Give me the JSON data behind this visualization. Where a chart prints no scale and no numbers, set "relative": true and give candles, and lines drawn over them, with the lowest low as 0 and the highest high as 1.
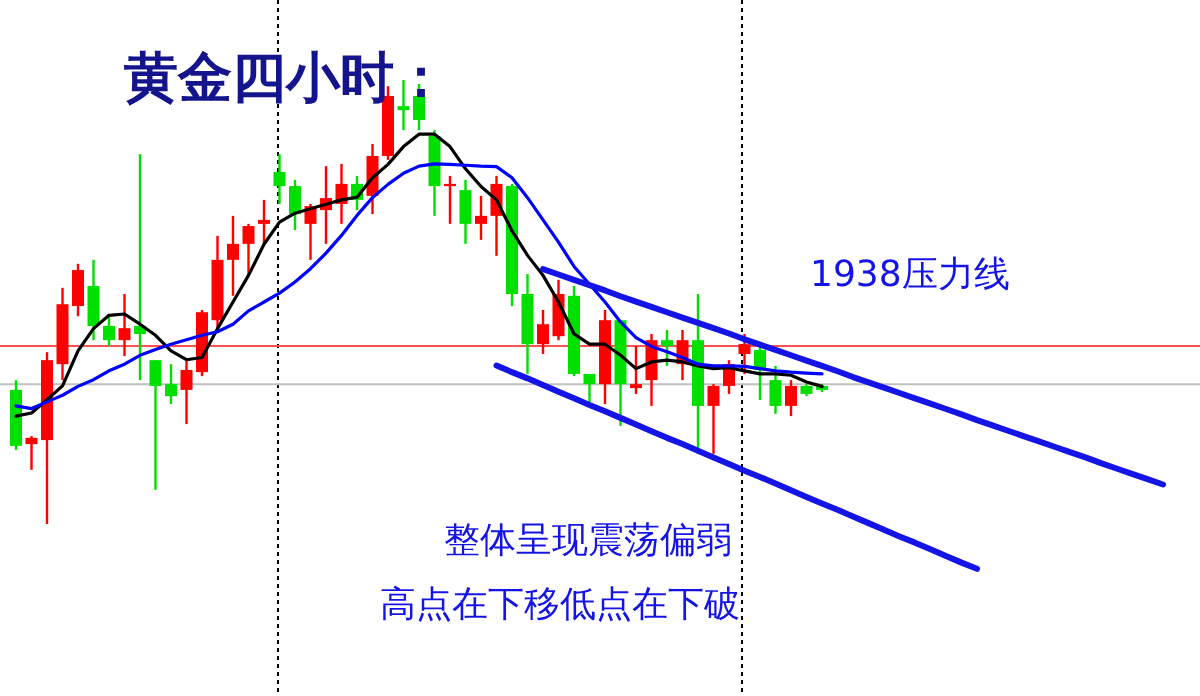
{
  "chart_data": {
    "type": "candlestick",
    "title": "黄金四小时：",
    "relative": true,
    "categories": [
      null,
      null,
      null,
      null,
      null,
      null,
      null,
      null,
      null,
      null,
      null,
      null,
      null,
      null,
      null,
      null,
      null,
      null,
      null,
      null,
      null,
      null,
      null,
      null,
      null,
      null,
      null,
      null,
      null,
      null,
      null,
      null,
      null,
      null,
      null,
      null,
      null,
      null,
      null,
      null,
      null,
      null,
      null,
      null,
      null,
      null,
      null,
      null,
      null,
      null,
      null,
      null,
      null,
      null,
      null,
      null,
      null,
      null,
      null,
      null,
      null,
      null,
      null,
      null,
      null,
      null,
      null,
      null,
      null,
      null,
      null,
      null,
      null,
      null,
      null
    ],
    "ohlc": [
      [
        0.302,
        0.324,
        0.167,
        0.176
      ],
      [
        0.18,
        0.198,
        0.122,
        0.194
      ],
      [
        0.189,
        0.387,
        0,
        0.369
      ],
      [
        0.36,
        0.532,
        0.324,
        0.495
      ],
      [
        0.491,
        0.586,
        0.468,
        0.572
      ],
      [
        0.536,
        0.595,
        0.414,
        0.446
      ],
      [
        0.446,
        0.473,
        0.401,
        0.414
      ],
      [
        0.414,
        0.518,
        0.378,
        0.441
      ],
      [
        0.446,
        0.833,
        0.324,
        0.428
      ],
      [
        0.369,
        0.369,
        0.077,
        0.311
      ],
      [
        0.315,
        0.36,
        0.27,
        0.288
      ],
      [
        0.302,
        0.369,
        0.225,
        0.347
      ],
      [
        0.342,
        0.482,
        0.333,
        0.477
      ],
      [
        0.459,
        0.649,
        0.437,
        0.595
      ],
      [
        0.595,
        0.694,
        0.514,
        0.631
      ],
      [
        0.631,
        0.676,
        0.563,
        0.671
      ],
      [
        0.676,
        0.73,
        0.631,
        0.685
      ],
      [
        0.793,
        0.833,
        0.721,
        0.761
      ],
      [
        0.761,
        0.775,
        0.662,
        0.698
      ],
      [
        0.676,
        0.721,
        0.595,
        0.716
      ],
      [
        0.707,
        0.806,
        0.631,
        0.734
      ],
      [
        0.721,
        0.811,
        0.676,
        0.766
      ],
      [
        0.766,
        0.784,
        0.707,
        0.73
      ],
      [
        0.739,
        0.856,
        0.698,
        0.829
      ],
      [
        0.829,
        0.986,
        0.82,
        0.964
      ],
      [
        0.941,
        1,
        0.887,
        0.932
      ],
      [
        0.964,
        0.991,
        0.887,
        0.91
      ],
      [
        0.874,
        0.887,
        0.694,
        0.761
      ],
      [
        0.761,
        0.784,
        0.676,
        0.766
      ],
      [
        0.752,
        0.775,
        0.631,
        0.676
      ],
      [
        0.676,
        0.739,
        0.64,
        0.694
      ],
      [
        0.694,
        0.784,
        0.604,
        0.766
      ],
      [
        0.761,
        0.766,
        0.491,
        0.518
      ],
      [
        0.518,
        0.563,
        0.338,
        0.405
      ],
      [
        0.405,
        0.482,
        0.383,
        0.45
      ],
      [
        0.423,
        0.55,
        0.414,
        0.518
      ],
      [
        0.514,
        0.536,
        0.333,
        0.338
      ],
      [
        0.338,
        0.338,
        0.266,
        0.315
      ],
      [
        0.315,
        0.482,
        0.27,
        0.459
      ],
      [
        0.459,
        0.459,
        0.221,
        0.315
      ],
      [
        0.306,
        0.401,
        0.293,
        0.315
      ],
      [
        0.324,
        0.428,
        0.266,
        0.414
      ],
      [
        0.414,
        0.437,
        0.356,
        0.401
      ],
      [
        0.36,
        0.437,
        0.324,
        0.414
      ],
      [
        0.414,
        0.518,
        0.158,
        0.266
      ],
      [
        0.266,
        0.315,
        0.158,
        0.311
      ],
      [
        0.311,
        0.369,
        0.293,
        0.36
      ],
      [
        0.383,
        0.428,
        0.338,
        0.405
      ],
      [
        0.392,
        0.401,
        0.279,
        0.347
      ],
      [
        0.324,
        0.356,
        0.248,
        0.266
      ],
      [
        0.266,
        0.324,
        0.243,
        0.311
      ],
      [
        0.311,
        0.315,
        0.288,
        0.293
      ],
      [
        0.311,
        0.315,
        0.297,
        0.302
      ],
      null,
      null,
      null,
      null,
      null,
      null,
      null,
      null,
      null,
      null,
      null,
      null,
      null,
      null,
      null,
      null,
      null,
      null,
      null,
      null,
      null,
      null
    ],
    "colors": [
      "#00e000",
      "#ff0000",
      "#ff0000",
      "#ff0000",
      "#ff0000",
      "#00e000",
      "#00e000",
      "#ff0000",
      "#00e000",
      "#00e000",
      "#00e000",
      "#ff0000",
      "#ff0000",
      "#ff0000",
      "#ff0000",
      "#ff0000",
      "#ff0000",
      "#00e000",
      "#00e000",
      "#ff0000",
      "#ff0000",
      "#ff0000",
      "#00e000",
      "#ff0000",
      "#ff0000",
      "#00e000",
      "#00e000",
      "#00e000",
      "#ff0000",
      "#00e000",
      "#ff0000",
      "#ff0000",
      "#00e000",
      "#00e000",
      "#ff0000",
      "#ff0000",
      "#00e000",
      "#00e000",
      "#ff0000",
      "#00e000",
      "#ff0000",
      "#ff0000",
      "#00e000",
      "#ff0000",
      "#00e000",
      "#ff0000",
      "#ff0000",
      "#ff0000",
      "#00e000",
      "#00e000",
      "#ff0000",
      "#00e000",
      "#00e000",
      null,
      null,
      null,
      null,
      null,
      null,
      null,
      null,
      null,
      null,
      null,
      null,
      null,
      null,
      null,
      null,
      null,
      null,
      null,
      null,
      null,
      null
    ],
    "series": [
      {
        "type": "line",
        "color": "#000000",
        "values": [
          0.243,
          0.25,
          0.28,
          0.311,
          0.39,
          0.44,
          0.47,
          0.473,
          0.45,
          0.425,
          0.39,
          0.37,
          0.375,
          0.44,
          0.5,
          0.56,
          0.63,
          0.68,
          0.7,
          0.71,
          0.72,
          0.73,
          0.736,
          0.78,
          0.81,
          0.85,
          0.878,
          0.878,
          0.85,
          0.8,
          0.76,
          0.73,
          0.66,
          0.605,
          0.56,
          0.5,
          0.428,
          0.405,
          0.405,
          0.38,
          0.35,
          0.365,
          0.369,
          0.365,
          0.356,
          0.35,
          0.352,
          0.345,
          0.338,
          0.338,
          0.335,
          0.32,
          0.31,
          null,
          null,
          null,
          null,
          null,
          null,
          null,
          null,
          null,
          null,
          null,
          null,
          null,
          null,
          null,
          null,
          null,
          null,
          null,
          null,
          null,
          null
        ]
      },
      {
        "type": "line",
        "color": "#0000ff",
        "values": [
          0.266,
          0.26,
          0.275,
          0.29,
          0.31,
          0.325,
          0.345,
          0.36,
          0.38,
          0.393,
          0.405,
          0.415,
          0.425,
          0.433,
          0.45,
          0.48,
          0.5,
          0.52,
          0.545,
          0.575,
          0.61,
          0.65,
          0.695,
          0.735,
          0.765,
          0.79,
          0.806,
          0.811,
          0.81,
          0.808,
          0.806,
          0.805,
          0.78,
          0.735,
          0.685,
          0.635,
          0.58,
          0.54,
          0.5,
          0.455,
          0.42,
          0.4,
          0.388,
          0.375,
          0.36,
          0.356,
          0.356,
          0.355,
          0.35,
          0.345,
          0.342,
          0.34,
          0.338,
          null,
          null,
          null,
          null,
          null,
          null,
          null,
          null,
          null,
          null,
          null,
          null,
          null,
          null,
          null,
          null,
          null,
          null,
          null,
          null,
          null,
          null
        ]
      },
      {
        "type": "line",
        "color": "#1414e6",
        "values": [
          null,
          null,
          null,
          null,
          null,
          null,
          null,
          null,
          null,
          null,
          null,
          null,
          null,
          null,
          null,
          null,
          null,
          null,
          null,
          null,
          null,
          null,
          null,
          null,
          null,
          null,
          null,
          null,
          null,
          null,
          null,
          null,
          null,
          null,
          0.574,
          0.562,
          0.55,
          0.538,
          0.526,
          0.513,
          0.501,
          0.489,
          0.477,
          0.465,
          0.453,
          0.441,
          0.429,
          0.416,
          0.404,
          0.392,
          0.38,
          0.368,
          0.356,
          0.344,
          0.331,
          0.319,
          0.307,
          0.295,
          0.283,
          0.271,
          0.259,
          0.247,
          0.234,
          0.222,
          0.21,
          0.198,
          0.186,
          0.174,
          0.162,
          0.15,
          0.137,
          0.125,
          0.113,
          0.101,
          0.089
        ]
      },
      {
        "type": "line",
        "color": "#1414e6",
        "values": [
          null,
          null,
          null,
          null,
          null,
          null,
          null,
          null,
          null,
          null,
          null,
          null,
          null,
          null,
          null,
          null,
          null,
          null,
          null,
          null,
          null,
          null,
          null,
          null,
          null,
          null,
          null,
          null,
          null,
          null,
          null,
          0.357,
          0.342,
          0.328,
          0.313,
          0.298,
          0.283,
          0.268,
          0.254,
          0.239,
          0.224,
          0.209,
          0.194,
          0.18,
          0.165,
          0.15,
          0.135,
          0.12,
          0.106,
          0.091,
          0.076,
          0.061,
          0.046,
          0.032,
          0.017,
          0.002,
          -0.013,
          -0.028,
          -0.042,
          -0.057,
          -0.072,
          -0.087,
          -0.101,
          null,
          null,
          null,
          null,
          null,
          null,
          null,
          null,
          null,
          null,
          null,
          null
        ]
      }
    ],
    "ref_lines": [
      {
        "axis": "y",
        "value": 0.401,
        "color": "#ff5050"
      },
      {
        "axis": "y",
        "value": 0.315,
        "color": "#c0c0c0"
      }
    ],
    "annotations": [
      "1938压力线",
      "整体呈现震荡偏弱",
      "高点在下移低点在下破"
    ]
  }
}
